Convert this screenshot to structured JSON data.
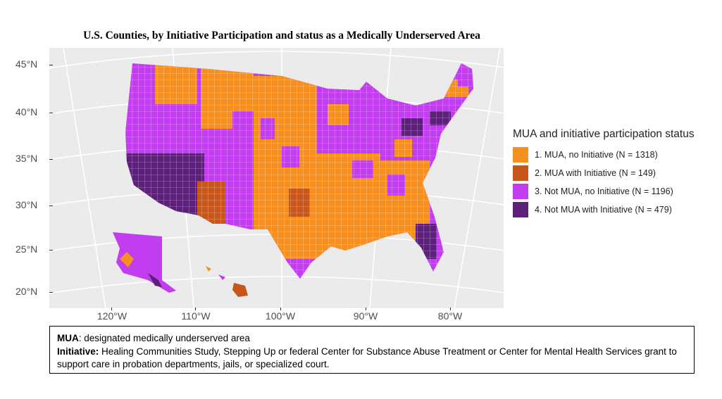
{
  "title": "U.S. Counties, by Initiative Participation and status as a Medically Underserved Area",
  "map": {
    "lat_labels": [
      "45°N",
      "40°N",
      "35°N",
      "30°N",
      "25°N",
      "20°N"
    ],
    "lon_labels": [
      "120°W",
      "110°W",
      "100°W",
      "90°W",
      "80°W"
    ],
    "background_color": "#ebebeb"
  },
  "legend": {
    "title": "MUA and initiative participation status",
    "items": [
      {
        "label": "1. MUA, no Initiative (N = 1318)",
        "color": "#f7901e"
      },
      {
        "label": "2. MUA with Initiative (N = 149)",
        "color": "#c8561a"
      },
      {
        "label": "3. Not MUA, no Initiative (N = 1196)",
        "color": "#c23cf0"
      },
      {
        "label": "4. Not MUA with Initiative (N = 479)",
        "color": "#5c1f7a"
      }
    ]
  },
  "notes": {
    "mua_term": "MUA",
    "mua_def": ": designated medically underserved area",
    "initiative_term": "Initiative:",
    "initiative_def": " Healing Communities Study, Stepping Up or federal Center for Substance Abuse Treatment or Center for Mental Health Services grant to support care in probation departments, jails, or specialized court."
  }
}
